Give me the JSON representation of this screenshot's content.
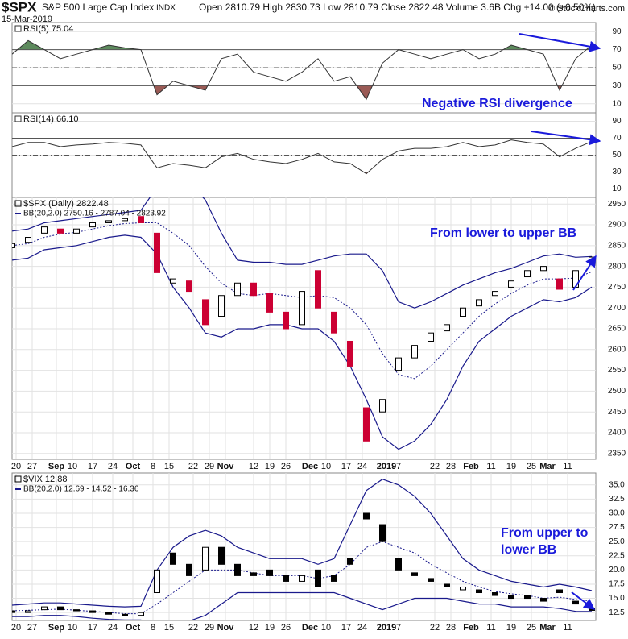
{
  "header": {
    "symbol": "$SPX",
    "name": "S&P 500 Large Cap Index",
    "exchange": "INDX",
    "date": "15-Mar-2019",
    "quote": "Open 2810.79 High 2830.73 Low 2810.79 Close 2822.48 Volume 3.6B Chg +14.00 (+0.50%)",
    "credit": "© StockCharts.com"
  },
  "chart_data": [
    {
      "type": "line",
      "annotation": "Negative RSI divergence",
      "xlim": [
        0,
        145
      ],
      "x": [
        0,
        4,
        8,
        12,
        16,
        20,
        24,
        28,
        32,
        36,
        40,
        44,
        48,
        52,
        56,
        60,
        64,
        68,
        72,
        76,
        80,
        84,
        88,
        92,
        96,
        100,
        104,
        108,
        112,
        116,
        120,
        124,
        128,
        132,
        136,
        140,
        144
      ],
      "series": [
        {
          "name": "RSI(5) 75.04",
          "color": "#333333",
          "values": [
            65,
            80,
            70,
            60,
            65,
            70,
            75,
            72,
            70,
            20,
            35,
            30,
            25,
            60,
            65,
            45,
            40,
            35,
            45,
            60,
            35,
            40,
            15,
            55,
            70,
            65,
            60,
            65,
            70,
            60,
            65,
            75,
            70,
            65,
            25,
            60,
            75.04
          ]
        }
      ],
      "levels": [
        30,
        50,
        70
      ],
      "fill_above": "#5d8a5d",
      "fill_below": "#9a5a55",
      "ylim": [
        0,
        100
      ],
      "yticks": [
        10,
        30,
        50,
        70,
        90
      ]
    },
    {
      "type": "line",
      "xlim": [
        0,
        145
      ],
      "x": [
        0,
        4,
        8,
        12,
        16,
        20,
        24,
        28,
        32,
        36,
        40,
        44,
        48,
        52,
        56,
        60,
        64,
        68,
        72,
        76,
        80,
        84,
        88,
        92,
        96,
        100,
        104,
        108,
        112,
        116,
        120,
        124,
        128,
        132,
        136,
        140,
        144
      ],
      "series": [
        {
          "name": "RSI(14) 66.10",
          "color": "#333333",
          "values": [
            60,
            65,
            65,
            60,
            62,
            63,
            65,
            64,
            62,
            35,
            40,
            38,
            35,
            48,
            52,
            45,
            42,
            40,
            45,
            52,
            42,
            40,
            28,
            45,
            55,
            58,
            58,
            60,
            65,
            60,
            62,
            68,
            65,
            63,
            48,
            58,
            66.1
          ]
        }
      ],
      "levels": [
        30,
        50,
        70
      ],
      "fill_above": "#5d8a5d",
      "fill_below": "#9a5a55",
      "ylim": [
        0,
        100
      ],
      "yticks": [
        10,
        30,
        50,
        70,
        90
      ]
    },
    {
      "type": "candlestick",
      "name": "$SPX (Daily) 2822.48",
      "annotation": "From lower to upper BB",
      "up_color": "#ffffff",
      "down_color": "#cc0033",
      "xlim": [
        0,
        145
      ],
      "x": [
        0,
        4,
        8,
        12,
        16,
        20,
        24,
        28,
        32,
        36,
        40,
        44,
        48,
        52,
        56,
        60,
        64,
        68,
        72,
        76,
        80,
        84,
        88,
        92,
        96,
        100,
        104,
        108,
        112,
        116,
        120,
        124,
        128,
        132,
        136,
        140,
        144
      ],
      "open": [
        2845,
        2858,
        2880,
        2890,
        2880,
        2895,
        2905,
        2910,
        2920,
        2880,
        2760,
        2765,
        2720,
        2680,
        2730,
        2760,
        2735,
        2690,
        2660,
        2790,
        2690,
        2620,
        2460,
        2450,
        2550,
        2580,
        2620,
        2645,
        2680,
        2705,
        2730,
        2750,
        2775,
        2790,
        2770,
        2750,
        2810.79
      ],
      "close": [
        2855,
        2870,
        2895,
        2880,
        2890,
        2905,
        2910,
        2915,
        2905,
        2785,
        2770,
        2740,
        2660,
        2730,
        2760,
        2730,
        2690,
        2650,
        2740,
        2700,
        2640,
        2560,
        2380,
        2480,
        2580,
        2610,
        2640,
        2660,
        2700,
        2720,
        2740,
        2765,
        2790,
        2800,
        2745,
        2790,
        2822.48
      ],
      "bollinger": {
        "name": "BB(20,2.0) 2750.16 - 2787.04 - 2823.92",
        "color": "#1a1a8c",
        "upper": [
          2885,
          2890,
          2905,
          2910,
          2915,
          2920,
          2925,
          2930,
          2935,
          2990,
          3010,
          3000,
          2960,
          2880,
          2815,
          2810,
          2810,
          2805,
          2805,
          2815,
          2825,
          2830,
          2830,
          2790,
          2715,
          2700,
          2715,
          2735,
          2755,
          2770,
          2785,
          2795,
          2810,
          2825,
          2830,
          2822,
          2823.92
        ],
        "middle": [
          2850,
          2855,
          2870,
          2878,
          2882,
          2890,
          2898,
          2903,
          2905,
          2905,
          2880,
          2850,
          2800,
          2760,
          2735,
          2730,
          2735,
          2730,
          2725,
          2730,
          2725,
          2700,
          2660,
          2590,
          2540,
          2530,
          2560,
          2600,
          2640,
          2680,
          2710,
          2735,
          2755,
          2770,
          2770,
          2772,
          2787.04
        ],
        "lower": [
          2815,
          2820,
          2840,
          2845,
          2850,
          2860,
          2870,
          2875,
          2870,
          2830,
          2750,
          2700,
          2640,
          2630,
          2650,
          2650,
          2660,
          2660,
          2650,
          2650,
          2620,
          2560,
          2480,
          2390,
          2360,
          2380,
          2420,
          2480,
          2560,
          2620,
          2650,
          2680,
          2700,
          2720,
          2715,
          2725,
          2750.16
        ]
      },
      "ylim": [
        2336,
        2966
      ],
      "yticks": [
        2350,
        2400,
        2450,
        2500,
        2550,
        2600,
        2650,
        2700,
        2750,
        2800,
        2850,
        2900,
        2950
      ],
      "xticks": [
        {
          "value": 1,
          "label": "20"
        },
        {
          "value": 5,
          "label": "27"
        },
        {
          "value": 11,
          "label": "Sep"
        },
        {
          "value": 15,
          "label": "10"
        },
        {
          "value": 20,
          "label": "17"
        },
        {
          "value": 25,
          "label": "24"
        },
        {
          "value": 30,
          "label": "Oct"
        },
        {
          "value": 35,
          "label": "8"
        },
        {
          "value": 39,
          "label": "15"
        },
        {
          "value": 45,
          "label": "22"
        },
        {
          "value": 49,
          "label": "29"
        },
        {
          "value": 53,
          "label": "Nov"
        },
        {
          "value": 60,
          "label": "12"
        },
        {
          "value": 64,
          "label": "19"
        },
        {
          "value": 68,
          "label": "26"
        },
        {
          "value": 74,
          "label": "Dec"
        },
        {
          "value": 78,
          "label": "10"
        },
        {
          "value": 83,
          "label": "17"
        },
        {
          "value": 87,
          "label": "24"
        },
        {
          "value": 93,
          "label": "2019"
        },
        {
          "value": 96,
          "label": "7"
        },
        {
          "value": 105,
          "label": "22"
        },
        {
          "value": 109,
          "label": "28"
        },
        {
          "value": 114,
          "label": "Feb"
        },
        {
          "value": 119,
          "label": "11"
        },
        {
          "value": 124,
          "label": "19"
        },
        {
          "value": 129,
          "label": "25"
        },
        {
          "value": 133,
          "label": "Mar"
        },
        {
          "value": 138,
          "label": "11"
        }
      ]
    },
    {
      "type": "candlestick",
      "name": "$VIX 12.88",
      "annotation": "From upper to lower BB",
      "up_color": "#ffffff",
      "down_color": "#000000",
      "xlim": [
        0,
        145
      ],
      "x": [
        0,
        4,
        8,
        12,
        16,
        20,
        24,
        28,
        32,
        36,
        40,
        44,
        48,
        52,
        56,
        60,
        64,
        68,
        72,
        76,
        80,
        84,
        88,
        92,
        96,
        100,
        104,
        108,
        112,
        116,
        120,
        124,
        128,
        132,
        136,
        140,
        144
      ],
      "open": [
        12.8,
        12.5,
        13,
        13.5,
        13,
        12.8,
        12.5,
        12.2,
        12,
        16,
        23,
        21,
        20,
        24,
        21,
        19.5,
        20,
        19,
        18,
        20,
        19,
        22,
        30,
        28,
        22,
        19.5,
        18.5,
        17.5,
        16.5,
        16.5,
        16,
        15.5,
        15.5,
        15,
        16.5,
        14.5,
        13.2
      ],
      "close": [
        12.5,
        12.8,
        13.5,
        13,
        12.8,
        12.5,
        12.2,
        12,
        12.5,
        20,
        21,
        19,
        24,
        21,
        19,
        19,
        19,
        18,
        19,
        17,
        18,
        21,
        29,
        25,
        20,
        19,
        18,
        17,
        17,
        16,
        15.5,
        15,
        15,
        14.5,
        16,
        14,
        12.88
      ],
      "bollinger": {
        "name": "BB(20,2.0) 12.69 - 14.52 - 16.36",
        "color": "#1a1a8c",
        "upper": [
          13.8,
          14,
          14.2,
          14.2,
          14,
          13.8,
          13.6,
          13.5,
          13.6,
          20,
          24,
          26,
          27,
          26,
          24,
          23,
          22,
          22,
          22,
          21,
          22,
          28,
          34,
          36,
          35,
          33,
          30,
          26,
          22,
          20,
          19,
          18,
          17.5,
          17,
          17.5,
          17,
          16.36
        ],
        "middle": [
          12.8,
          12.9,
          13,
          13.1,
          12.9,
          12.7,
          12.5,
          12.3,
          12.3,
          14,
          16,
          18,
          20,
          20,
          20,
          19.5,
          19,
          19,
          19,
          18.5,
          19,
          21,
          24,
          25,
          24,
          23,
          21,
          19.5,
          18,
          17,
          16.2,
          15.8,
          15.5,
          15,
          15.2,
          14.8,
          14.52
        ],
        "lower": [
          11.8,
          11.8,
          12,
          12,
          11.8,
          11.5,
          11.3,
          11.2,
          11.2,
          9,
          8,
          11,
          12,
          14,
          16,
          16,
          16,
          16,
          16,
          16,
          16,
          15,
          14,
          13,
          14,
          15,
          15,
          15,
          14.5,
          14,
          14,
          13.5,
          13.5,
          13.5,
          13.2,
          12.7,
          12.69
        ]
      },
      "ylim": [
        11.1,
        37.1
      ],
      "yticks": [
        12.5,
        {
          "value": 15,
          "label": "15.0"
        },
        17.5,
        {
          "value": 20,
          "label": "20.0"
        },
        22.5,
        {
          "value": 25,
          "label": "25.0"
        },
        27.5,
        {
          "value": 30,
          "label": "30.0"
        },
        32.5,
        {
          "value": 35,
          "label": "35.0"
        }
      ],
      "xticks": [
        {
          "value": 1,
          "label": "20"
        },
        {
          "value": 5,
          "label": "27"
        },
        {
          "value": 11,
          "label": "Sep"
        },
        {
          "value": 15,
          "label": "10"
        },
        {
          "value": 20,
          "label": "17"
        },
        {
          "value": 25,
          "label": "24"
        },
        {
          "value": 30,
          "label": "Oct"
        },
        {
          "value": 35,
          "label": "8"
        },
        {
          "value": 39,
          "label": "15"
        },
        {
          "value": 45,
          "label": "22"
        },
        {
          "value": 49,
          "label": "29"
        },
        {
          "value": 53,
          "label": "Nov"
        },
        {
          "value": 60,
          "label": "12"
        },
        {
          "value": 64,
          "label": "19"
        },
        {
          "value": 68,
          "label": "26"
        },
        {
          "value": 74,
          "label": "Dec"
        },
        {
          "value": 78,
          "label": "10"
        },
        {
          "value": 83,
          "label": "17"
        },
        {
          "value": 87,
          "label": "24"
        },
        {
          "value": 93,
          "label": "2019"
        },
        {
          "value": 96,
          "label": "7"
        },
        {
          "value": 105,
          "label": "22"
        },
        {
          "value": 109,
          "label": "28"
        },
        {
          "value": 114,
          "label": "Feb"
        },
        {
          "value": 119,
          "label": "11"
        },
        {
          "value": 124,
          "label": "19"
        },
        {
          "value": 129,
          "label": "25"
        },
        {
          "value": 133,
          "label": "Mar"
        },
        {
          "value": 138,
          "label": "11"
        }
      ]
    }
  ]
}
